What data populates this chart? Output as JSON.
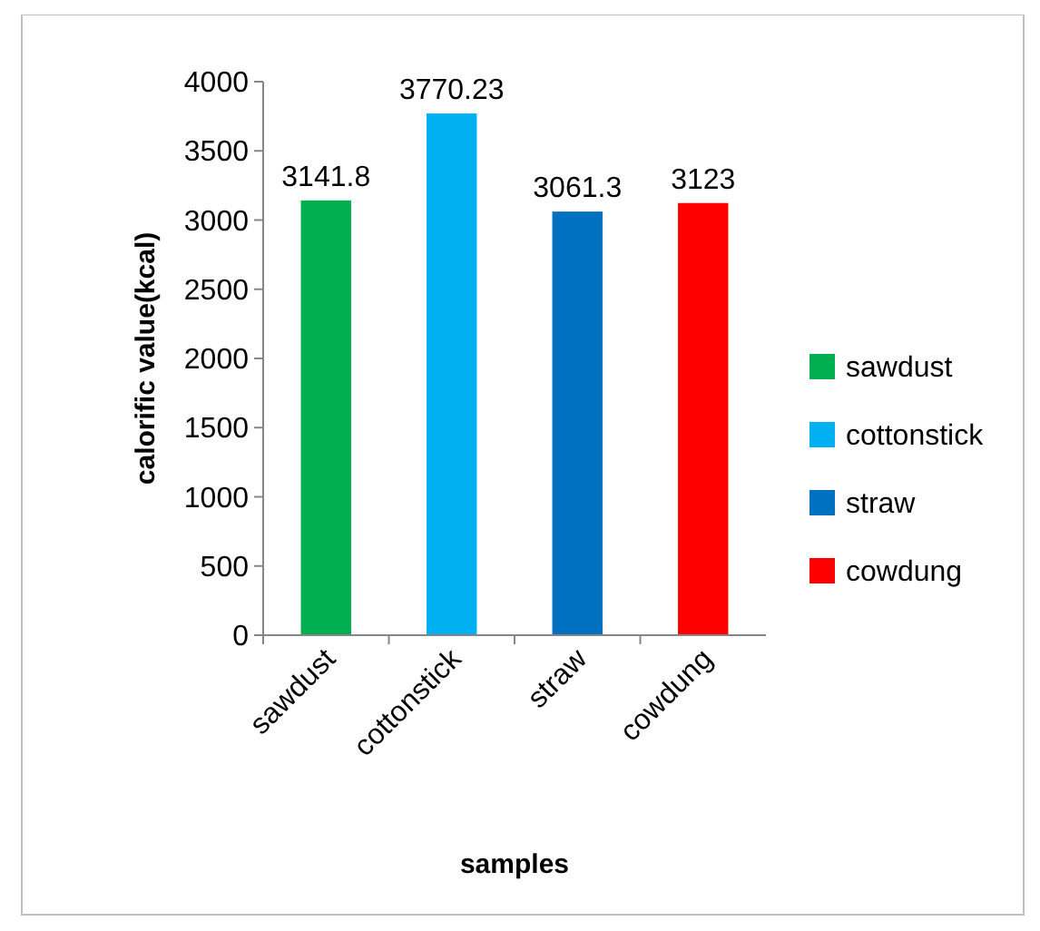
{
  "chart_data": {
    "type": "bar",
    "xlabel": "samples",
    "ylabel": "calorific value(kcal)",
    "categories": [
      "sawdust",
      "cottonstick",
      "straw",
      "cowdung"
    ],
    "series": [
      {
        "name": "sawdust",
        "color": "#00b050",
        "values": [
          3141.8,
          null,
          null,
          null
        ]
      },
      {
        "name": "cottonstick",
        "color": "#00b0f0",
        "values": [
          null,
          3770.23,
          null,
          null
        ]
      },
      {
        "name": "straw",
        "color": "#0070c0",
        "values": [
          null,
          null,
          3061.3,
          null
        ]
      },
      {
        "name": "cowdung",
        "color": "#ff0000",
        "values": [
          null,
          null,
          null,
          3123
        ]
      }
    ],
    "ylim": [
      0,
      4000
    ],
    "yticks": [
      0,
      500,
      1000,
      1500,
      2000,
      2500,
      3000,
      3500,
      4000
    ],
    "data_labels": true,
    "legend": "right",
    "grid": false
  }
}
